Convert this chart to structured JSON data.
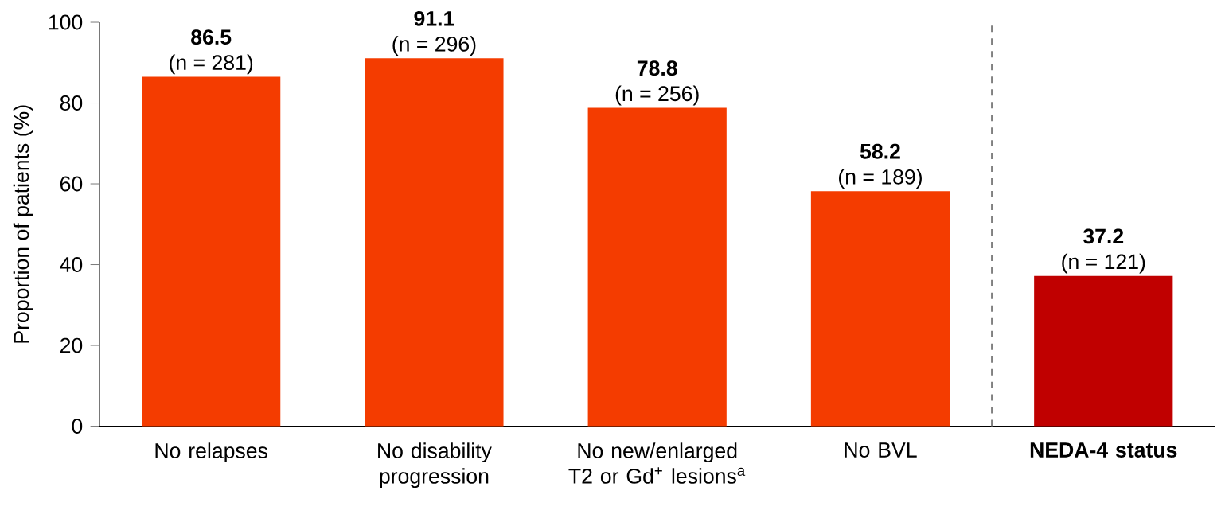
{
  "chart_data": {
    "type": "bar",
    "ylabel": "Proportion of patients (%)",
    "categories": [
      "No relapses",
      "No disability progression",
      "No new/enlarged T2 or Gd$^{+}$ lesions$^{a}$",
      "No BVL",
      "**NEDA-4 status**"
    ],
    "values": [
      86.5,
      91.1,
      78.8,
      58.2,
      37.2
    ],
    "colors": [
      "#f43c00",
      "#f43c00",
      "#f43c00",
      "#f43c00",
      "#c00000"
    ],
    "data_labels": true,
    "annotations": [
      {
        "text": "(n = 281)",
        "x": "No relapses",
        "y": 86.5
      },
      {
        "text": "(n = 296)",
        "x": "No disability progression",
        "y": 91.1
      },
      {
        "text": "(n = 256)",
        "x": "No new/enlarged T2 or Gd$^{+}$ lesions$^{a}$",
        "y": 78.8
      },
      {
        "text": "(n = 189)",
        "x": "No BVL",
        "y": 58.2
      },
      {
        "text": "(n = 121)",
        "x": "**NEDA-4 status**",
        "y": 37.2
      }
    ],
    "ylim": [
      0,
      100
    ],
    "yticks": [
      0,
      20,
      40,
      60,
      80,
      100
    ]
  }
}
